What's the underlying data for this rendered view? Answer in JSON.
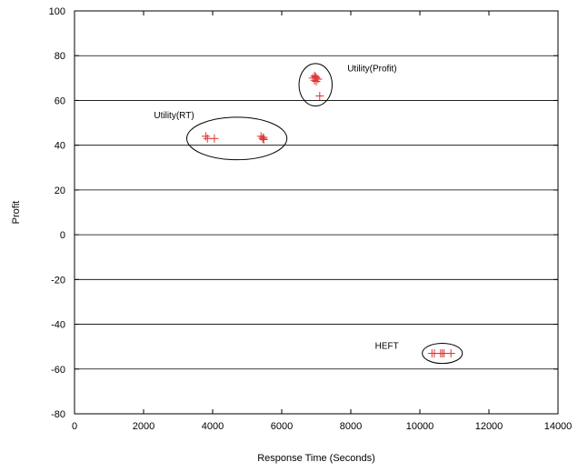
{
  "chart_data": {
    "type": "scatter",
    "xlabel": "Response Time (Seconds)",
    "ylabel": "Profit",
    "xlim": [
      0,
      14000
    ],
    "ylim": [
      -80,
      100
    ],
    "x_ticks": [
      0,
      2000,
      4000,
      6000,
      8000,
      10000,
      12000,
      14000
    ],
    "y_ticks": [
      -80,
      -60,
      -40,
      -20,
      0,
      20,
      40,
      60,
      80,
      100
    ],
    "x_tick_labels": [
      "0",
      "2000",
      "4000",
      "6000",
      "8000",
      "10000",
      "12000",
      "14000"
    ],
    "y_tick_labels": [
      "-80",
      "-60",
      "-40",
      "-20",
      "0",
      "20",
      "40",
      "60",
      "80",
      "100"
    ],
    "grid": "horizontal",
    "marker_color": "#e03030",
    "series": [
      {
        "points": [
          [
            3800,
            44
          ],
          [
            3850,
            43
          ],
          [
            4050,
            43
          ],
          [
            5400,
            44
          ],
          [
            5450,
            43
          ],
          [
            5470,
            43.5
          ],
          [
            5480,
            42.5
          ]
        ]
      },
      {
        "points": [
          [
            6900,
            70
          ],
          [
            6950,
            71
          ],
          [
            6950,
            69
          ],
          [
            7000,
            70
          ],
          [
            7000,
            68.5
          ],
          [
            7050,
            69.5
          ],
          [
            6980,
            70.5
          ],
          [
            7100,
            62
          ]
        ]
      },
      {
        "points": [
          [
            10350,
            -53
          ],
          [
            10420,
            -53
          ],
          [
            10600,
            -53
          ],
          [
            10650,
            -53
          ],
          [
            10700,
            -53
          ],
          [
            10900,
            -53
          ]
        ]
      }
    ],
    "annotations": [
      {
        "text": "Utility(RT)",
        "x": 2300,
        "y": 52
      },
      {
        "text": "Utility(Profit)",
        "x": 7900,
        "y": 73
      },
      {
        "text": "HEFT",
        "x": 8700,
        "y": -51
      }
    ],
    "ellipses": [
      {
        "cx": 4700,
        "cy": 43,
        "rx": 1450,
        "ry": 9.5
      },
      {
        "cx": 6980,
        "cy": 67,
        "rx": 480,
        "ry": 9.5
      },
      {
        "cx": 10650,
        "cy": -53,
        "rx": 580,
        "ry": 4.5
      }
    ]
  }
}
